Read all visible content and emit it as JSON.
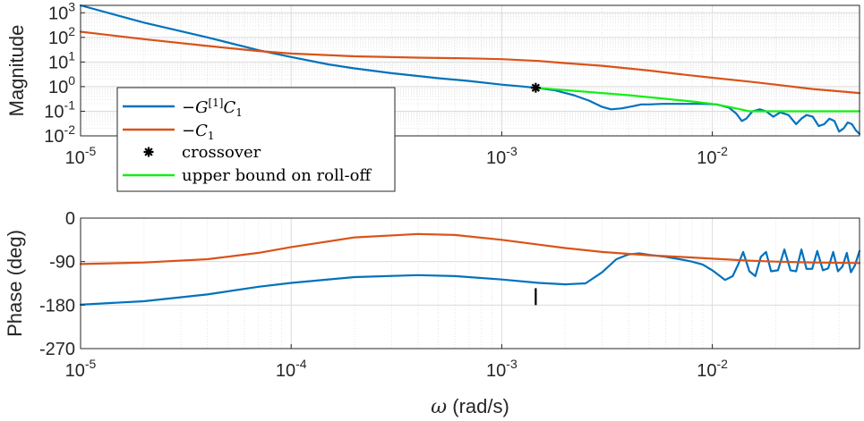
{
  "chart_data": [
    {
      "type": "line",
      "title": "",
      "xlabel": "",
      "ylabel": "Magnitude",
      "xscale": "log",
      "yscale": "log",
      "xlim": [
        1e-05,
        0.05
      ],
      "ylim": [
        0.01,
        2000
      ],
      "xticks": [
        {
          "value": 1e-05,
          "base": "10",
          "exp": "-5"
        },
        {
          "value": 0.001,
          "base": "10",
          "exp": "-3"
        },
        {
          "value": 0.01,
          "base": "10",
          "exp": "-2"
        }
      ],
      "yticks": [
        {
          "value": 0.01,
          "base": "10",
          "exp": "-2"
        },
        {
          "value": 0.1,
          "base": "10",
          "exp": "-1"
        },
        {
          "value": 1,
          "base": "10",
          "exp": "0"
        },
        {
          "value": 10,
          "base": "10",
          "exp": "1"
        },
        {
          "value": 100,
          "base": "10",
          "exp": "2"
        },
        {
          "value": 1000,
          "base": "10",
          "exp": "3"
        }
      ],
      "grid": true,
      "legend_position": "bottom-left",
      "series": [
        {
          "name": "−G[1]C1",
          "color": "#0072BD",
          "x": [
            1e-05,
            2e-05,
            4e-05,
            7e-05,
            0.0001,
            0.00015,
            0.0002,
            0.0003,
            0.0005,
            0.0007,
            0.001,
            0.0012,
            0.00145,
            0.0018,
            0.0022,
            0.0026,
            0.003,
            0.0033,
            0.0037,
            0.0042,
            0.0046,
            0.005,
            0.0058,
            0.0065,
            0.0075,
            0.009,
            0.0105,
            0.012,
            0.013,
            0.0138,
            0.0145,
            0.0155,
            0.0168,
            0.018,
            0.0195,
            0.021,
            0.023,
            0.025,
            0.0265,
            0.028,
            0.03,
            0.032,
            0.034,
            0.036,
            0.038,
            0.04,
            0.042,
            0.044,
            0.046,
            0.048,
            0.05
          ],
          "y": [
            2000,
            400,
            100,
            30,
            16,
            8,
            5.5,
            3.5,
            2.2,
            1.7,
            1.2,
            1.05,
            0.9,
            0.7,
            0.45,
            0.27,
            0.15,
            0.12,
            0.13,
            0.16,
            0.19,
            0.19,
            0.2,
            0.2,
            0.2,
            0.2,
            0.19,
            0.14,
            0.08,
            0.04,
            0.05,
            0.1,
            0.12,
            0.1,
            0.06,
            0.09,
            0.07,
            0.03,
            0.05,
            0.07,
            0.06,
            0.025,
            0.03,
            0.05,
            0.04,
            0.015,
            0.02,
            0.035,
            0.03,
            0.017,
            0.012
          ]
        },
        {
          "name": "−C1",
          "color": "#D95319",
          "x": [
            1e-05,
            2e-05,
            4e-05,
            7e-05,
            0.0001,
            0.0002,
            0.0004,
            0.0007,
            0.001,
            0.0015,
            0.002,
            0.003,
            0.005,
            0.007,
            0.01,
            0.015,
            0.02,
            0.03,
            0.04,
            0.05
          ],
          "y": [
            170,
            85,
            45,
            28,
            22,
            17,
            15,
            14,
            13,
            11,
            9,
            7,
            4.5,
            3.2,
            2.3,
            1.6,
            1.2,
            0.8,
            0.65,
            0.55
          ]
        },
        {
          "name": "upper bound on roll-off",
          "color": "#11F011",
          "x": [
            0.00145,
            0.002,
            0.004,
            0.008,
            0.01,
            0.012,
            0.015,
            0.02,
            0.03,
            0.05
          ],
          "y": [
            0.9,
            0.72,
            0.45,
            0.25,
            0.2,
            0.15,
            0.1,
            0.1,
            0.1,
            0.1
          ]
        }
      ],
      "annotations": [
        {
          "type": "marker",
          "name": "crossover",
          "x": 0.00145,
          "y": 0.9
        }
      ]
    },
    {
      "type": "line",
      "title": "",
      "xlabel": "ω (rad/s)",
      "ylabel": "Phase (deg)",
      "xscale": "log",
      "yscale": "linear",
      "xlim": [
        1e-05,
        0.05
      ],
      "ylim": [
        -270,
        0
      ],
      "xticks": [
        {
          "value": 1e-05,
          "base": "10",
          "exp": "-5"
        },
        {
          "value": 0.0001,
          "base": "10",
          "exp": "-4"
        },
        {
          "value": 0.001,
          "base": "10",
          "exp": "-3"
        },
        {
          "value": 0.01,
          "base": "10",
          "exp": "-2"
        }
      ],
      "yticks": [
        {
          "value": 0,
          "label": "0"
        },
        {
          "value": -90,
          "label": "-90"
        },
        {
          "value": -180,
          "label": "-180"
        },
        {
          "value": -270,
          "label": "-270"
        }
      ],
      "grid": true,
      "series": [
        {
          "name": "−G[1]C1",
          "color": "#0072BD",
          "x": [
            1e-05,
            2e-05,
            4e-05,
            7e-05,
            0.0001,
            0.0002,
            0.0004,
            0.0006,
            0.001,
            0.0015,
            0.002,
            0.0025,
            0.003,
            0.0035,
            0.004,
            0.0045,
            0.005,
            0.006,
            0.007,
            0.008,
            0.009,
            0.01,
            0.0115,
            0.0125,
            0.0133,
            0.014,
            0.015,
            0.016,
            0.017,
            0.018,
            0.019,
            0.0205,
            0.022,
            0.0235,
            0.025,
            0.0265,
            0.028,
            0.0298,
            0.0315,
            0.0335,
            0.0355,
            0.0375,
            0.0395,
            0.0415,
            0.0435,
            0.0455,
            0.0475,
            0.05
          ],
          "y": [
            -179,
            -172,
            -158,
            -142,
            -134,
            -122,
            -118,
            -120,
            -127,
            -134,
            -137,
            -135,
            -112,
            -85,
            -75,
            -73,
            -76,
            -80,
            -85,
            -90,
            -96,
            -108,
            -128,
            -120,
            -95,
            -70,
            -110,
            -120,
            -80,
            -70,
            -110,
            -108,
            -65,
            -108,
            -110,
            -65,
            -105,
            -105,
            -68,
            -108,
            -104,
            -70,
            -110,
            -100,
            -72,
            -112,
            -98,
            -68
          ]
        },
        {
          "name": "−C1",
          "color": "#D95319",
          "x": [
            1e-05,
            2e-05,
            4e-05,
            7e-05,
            0.0001,
            0.0002,
            0.0004,
            0.0006,
            0.001,
            0.0015,
            0.002,
            0.003,
            0.004,
            0.005,
            0.007,
            0.01,
            0.015,
            0.02,
            0.03,
            0.05
          ],
          "y": [
            -95,
            -92,
            -85,
            -72,
            -60,
            -40,
            -33,
            -35,
            -45,
            -55,
            -62,
            -70,
            -74,
            -77,
            -80,
            -84,
            -88,
            -90,
            -92,
            -93
          ]
        }
      ],
      "annotations": [
        {
          "type": "vertical-marker",
          "name": "crossover",
          "x": 0.00145,
          "y_from": -145,
          "y_to": -180
        }
      ]
    }
  ]
}
